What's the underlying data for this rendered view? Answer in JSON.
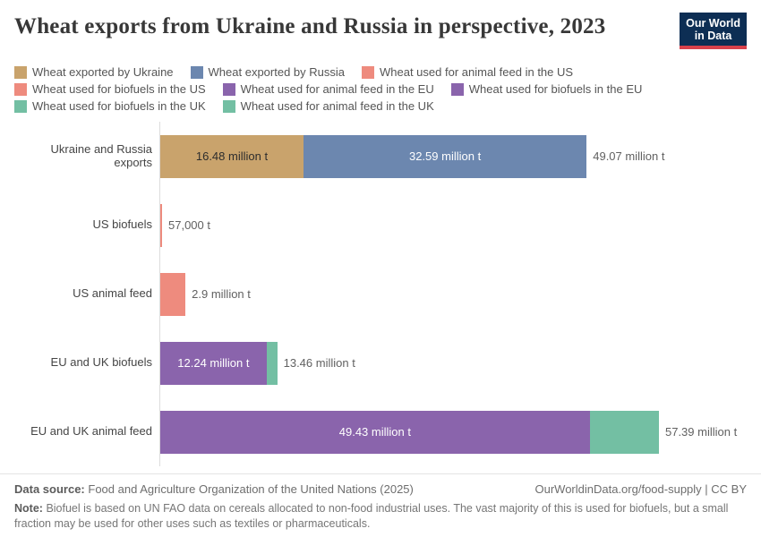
{
  "header": {
    "title": "Wheat exports from Ukraine and Russia in perspective, 2023",
    "logo": {
      "line1": "Our World",
      "line2": "in Data",
      "bg_color": "#0d2e54",
      "accent_color": "#d8414b"
    }
  },
  "legend": {
    "items": [
      {
        "label": "Wheat exported by Ukraine",
        "color": "#c9a36c"
      },
      {
        "label": "Wheat exported by Russia",
        "color": "#6c87af"
      },
      {
        "label": "Wheat used for animal feed in the US",
        "color": "#ee8b7e"
      },
      {
        "label": "Wheat used for biofuels in the US",
        "color": "#ee8b7e"
      },
      {
        "label": "Wheat used for animal feed in the EU",
        "color": "#8a64ac"
      },
      {
        "label": "Wheat used for biofuels in the EU",
        "color": "#8a64ac"
      },
      {
        "label": "Wheat used for biofuels in the UK",
        "color": "#73bfa3"
      },
      {
        "label": "Wheat used for animal feed in the UK",
        "color": "#73bfa3"
      }
    ]
  },
  "chart_data": {
    "type": "bar",
    "orientation": "horizontal",
    "unit": "million tonnes",
    "xlim": [
      0,
      57.39
    ],
    "grid": false,
    "rows": [
      {
        "label": "Ukraine and Russia exports",
        "total_value": 49.07,
        "total_label": "49.07 million t",
        "segments": [
          {
            "name": "Wheat exported by Ukraine",
            "value": 16.48,
            "label": "16.48 million t",
            "color": "#c9a36c",
            "text_color": "#2d2d2d"
          },
          {
            "name": "Wheat exported by Russia",
            "value": 32.59,
            "label": "32.59 million t",
            "color": "#6c87af",
            "text_color": "#ffffff"
          }
        ]
      },
      {
        "label": "US biofuels",
        "total_value": 0.057,
        "total_label": "57,000 t",
        "segments": [
          {
            "name": "Wheat used for biofuels in the US",
            "value": 0.057,
            "label": "",
            "color": "#ee8b7e",
            "text_color": "#ffffff"
          }
        ]
      },
      {
        "label": "US animal feed",
        "total_value": 2.9,
        "total_label": "2.9 million t",
        "segments": [
          {
            "name": "Wheat used for animal feed in the US",
            "value": 2.9,
            "label": "",
            "color": "#ee8b7e",
            "text_color": "#ffffff"
          }
        ]
      },
      {
        "label": "EU and UK biofuels",
        "total_value": 13.46,
        "total_label": "13.46 million t",
        "segments": [
          {
            "name": "Wheat used for biofuels in the EU",
            "value": 12.24,
            "label": "12.24 million t",
            "color": "#8a64ac",
            "text_color": "#ffffff"
          },
          {
            "name": "Wheat used for biofuels in the UK",
            "value": 1.22,
            "label": "",
            "color": "#73bfa3",
            "text_color": "#ffffff"
          }
        ]
      },
      {
        "label": "EU and UK animal feed",
        "total_value": 57.39,
        "total_label": "57.39 million t",
        "segments": [
          {
            "name": "Wheat used for animal feed in the EU",
            "value": 49.43,
            "label": "49.43 million t",
            "color": "#8a64ac",
            "text_color": "#ffffff"
          },
          {
            "name": "Wheat used for animal feed in the UK",
            "value": 7.96,
            "label": "",
            "color": "#73bfa3",
            "text_color": "#ffffff"
          }
        ]
      }
    ]
  },
  "footer": {
    "source_label": "Data source:",
    "source_text": "Food and Agriculture Organization of the United Nations (2025)",
    "citation": "OurWorldinData.org/food-supply | CC BY",
    "note_label": "Note:",
    "note_text": "Biofuel is based on UN FAO data on cereals allocated to non-food industrial uses. The vast majority of this is used for biofuels, but a small fraction may be used for other uses such as textiles or pharmaceuticals."
  }
}
